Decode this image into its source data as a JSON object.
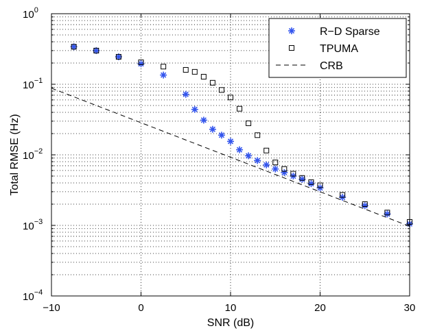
{
  "chart_data": {
    "type": "scatter",
    "title": "",
    "xlabel": "SNR (dB)",
    "ylabel": "Total RMSE (Hz)",
    "xlim": [
      -10,
      30
    ],
    "ylim": [
      0.0001,
      1
    ],
    "yscale": "log",
    "grid": true,
    "legend_position": "top-right",
    "x_ticks": [
      -10,
      0,
      10,
      20,
      30
    ],
    "x_tick_labels": [
      "−10",
      "0",
      "10",
      "20",
      "30"
    ],
    "y_ticks": [
      {
        "value": 0.0001,
        "base": "10",
        "exp": "−4"
      },
      {
        "value": 0.001,
        "base": "10",
        "exp": "−3"
      },
      {
        "value": 0.01,
        "base": "10",
        "exp": "−2"
      },
      {
        "value": 0.1,
        "base": "10",
        "exp": "−1"
      },
      {
        "value": 1,
        "base": "10",
        "exp": "0"
      }
    ],
    "series": [
      {
        "name": "R−D Sparse",
        "marker": "asterisk",
        "color": "#3355ee",
        "points": [
          [
            -7.5,
            0.34
          ],
          [
            -5,
            0.3
          ],
          [
            -2.5,
            0.245
          ],
          [
            0,
            0.195
          ],
          [
            2.5,
            0.135
          ],
          [
            5,
            0.072
          ],
          [
            6,
            0.044
          ],
          [
            7,
            0.031
          ],
          [
            8,
            0.023
          ],
          [
            9,
            0.019
          ],
          [
            10,
            0.0155
          ],
          [
            11,
            0.0118
          ],
          [
            12,
            0.0097
          ],
          [
            13,
            0.0083
          ],
          [
            14,
            0.0072
          ],
          [
            15,
            0.0063
          ],
          [
            16,
            0.0056
          ],
          [
            17,
            0.005
          ],
          [
            18,
            0.0045
          ],
          [
            19,
            0.0039
          ],
          [
            20,
            0.0034
          ],
          [
            22.5,
            0.0025
          ],
          [
            25,
            0.0019
          ],
          [
            27.5,
            0.00145
          ],
          [
            30,
            0.00105
          ]
        ]
      },
      {
        "name": "TPUMA",
        "marker": "square",
        "color": "#000000",
        "points": [
          [
            -7.5,
            0.34
          ],
          [
            -5,
            0.3
          ],
          [
            -2.5,
            0.245
          ],
          [
            0,
            0.205
          ],
          [
            2.5,
            0.178
          ],
          [
            5,
            0.16
          ],
          [
            6,
            0.15
          ],
          [
            7,
            0.128
          ],
          [
            8,
            0.105
          ],
          [
            9,
            0.083
          ],
          [
            10,
            0.065
          ],
          [
            11,
            0.045
          ],
          [
            12,
            0.028
          ],
          [
            13,
            0.019
          ],
          [
            14,
            0.0115
          ],
          [
            15,
            0.0078
          ],
          [
            16,
            0.0063
          ],
          [
            17,
            0.0054
          ],
          [
            18,
            0.0047
          ],
          [
            19,
            0.0041
          ],
          [
            20,
            0.0037
          ],
          [
            22.5,
            0.0027
          ],
          [
            25,
            0.002
          ],
          [
            27.5,
            0.00152
          ],
          [
            30,
            0.00112
          ]
        ]
      },
      {
        "name": "CRB",
        "marker": "dashed-line",
        "color": "#000000",
        "points": [
          [
            -10,
            0.088
          ],
          [
            30,
            0.00097
          ]
        ]
      }
    ]
  }
}
